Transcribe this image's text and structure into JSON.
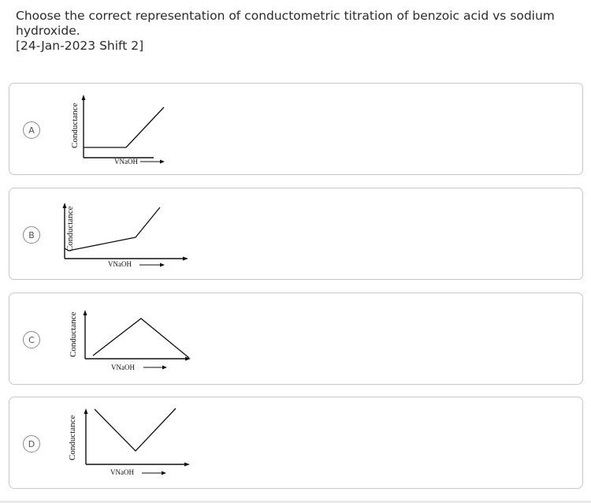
{
  "question": {
    "line1": "Choose the correct representation of conductometric titration of benzoic acid vs sodium",
    "line2": "hydroxide.",
    "line3": "[24-Jan-2023 Shift 2]"
  },
  "options": [
    {
      "letter": "A",
      "ylabel": "Conductance",
      "xlabel": "VNaOH"
    },
    {
      "letter": "B",
      "ylabel": "Conductance",
      "xlabel": "VNaOH"
    },
    {
      "letter": "C",
      "ylabel": "Conductance",
      "xlabel": "VNaOH"
    },
    {
      "letter": "D",
      "ylabel": "Conductance",
      "xlabel": "VNaOH"
    }
  ]
}
